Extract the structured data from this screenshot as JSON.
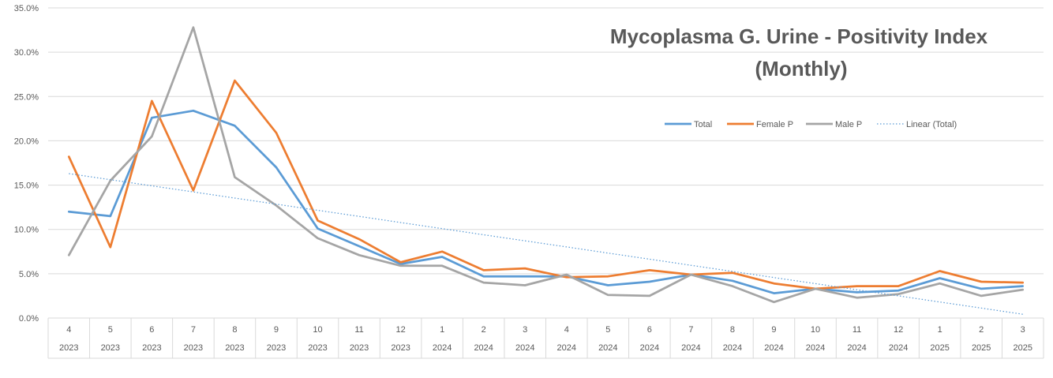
{
  "chart_data": {
    "type": "line",
    "title_lines": [
      "Mycoplasma G. Urine - Positivity Index",
      "(Monthly)"
    ],
    "xlabel": "",
    "ylabel": "",
    "ylim": [
      0,
      0.35
    ],
    "y_ticks": [
      "0.0%",
      "5.0%",
      "10.0%",
      "15.0%",
      "20.0%",
      "25.0%",
      "30.0%",
      "35.0%"
    ],
    "y_tick_values": [
      0,
      0.05,
      0.1,
      0.15,
      0.2,
      0.25,
      0.3,
      0.35
    ],
    "categories_month": [
      "4",
      "5",
      "6",
      "7",
      "8",
      "9",
      "10",
      "11",
      "12",
      "1",
      "2",
      "3",
      "4",
      "5",
      "6",
      "7",
      "8",
      "9",
      "10",
      "11",
      "12",
      "1",
      "2",
      "3"
    ],
    "categories_year": [
      "2023",
      "2023",
      "2023",
      "2023",
      "2023",
      "2023",
      "2023",
      "2023",
      "2023",
      "2024",
      "2024",
      "2024",
      "2024",
      "2024",
      "2024",
      "2024",
      "2024",
      "2024",
      "2024",
      "2024",
      "2024",
      "2025",
      "2025",
      "2025"
    ],
    "series": [
      {
        "name": "Total",
        "color": "#5B9BD5",
        "style": "solid",
        "values": [
          0.12,
          0.115,
          0.226,
          0.234,
          0.217,
          0.17,
          0.101,
          0.081,
          0.061,
          0.069,
          0.047,
          0.047,
          0.047,
          0.037,
          0.041,
          0.049,
          0.042,
          0.028,
          0.033,
          0.029,
          0.031,
          0.045,
          0.033,
          0.036
        ]
      },
      {
        "name": "Female P",
        "color": "#ED7D31",
        "style": "solid",
        "values": [
          0.182,
          0.08,
          0.245,
          0.144,
          0.268,
          0.209,
          0.11,
          0.089,
          0.063,
          0.075,
          0.054,
          0.056,
          0.046,
          0.047,
          0.054,
          0.049,
          0.051,
          0.039,
          0.033,
          0.036,
          0.036,
          0.053,
          0.041,
          0.04
        ]
      },
      {
        "name": "Male P",
        "color": "#A5A5A5",
        "style": "solid",
        "values": [
          0.071,
          0.155,
          0.205,
          0.328,
          0.159,
          0.127,
          0.09,
          0.071,
          0.059,
          0.059,
          0.04,
          0.037,
          0.049,
          0.026,
          0.025,
          0.049,
          0.036,
          0.018,
          0.033,
          0.023,
          0.027,
          0.039,
          0.025,
          0.032
        ]
      },
      {
        "name": "Linear (Total)",
        "color": "#5B9BD5",
        "style": "dotted",
        "trendline_of": "Total",
        "values": [
          0.163,
          0.1561,
          0.1492,
          0.1423,
          0.1354,
          0.1285,
          0.1216,
          0.1147,
          0.1078,
          0.1009,
          0.094,
          0.0871,
          0.0802,
          0.0733,
          0.0664,
          0.0595,
          0.0526,
          0.0457,
          0.0388,
          0.0319,
          0.025,
          0.0181,
          0.0112,
          0.0043
        ]
      }
    ],
    "legend_position": "upper-right",
    "grid": true
  }
}
